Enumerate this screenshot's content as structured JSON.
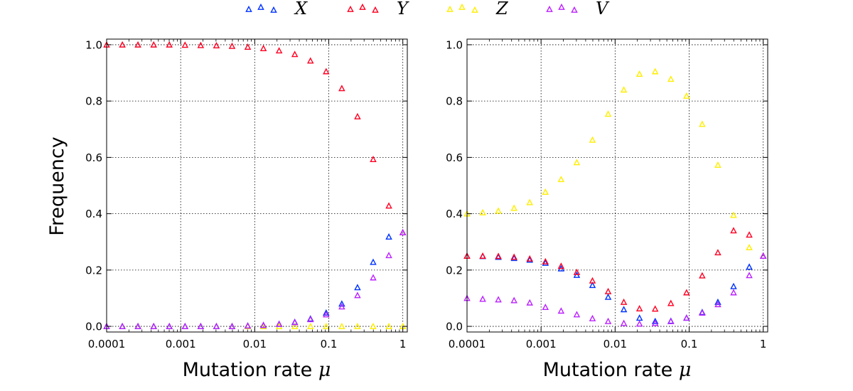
{
  "chart_data": [
    {
      "type": "scatter",
      "panel": "left",
      "xscale": "log",
      "xlim": [
        0.0001,
        1.15
      ],
      "ylim": [
        -0.02,
        1.02
      ],
      "grid": true,
      "xlabel_text": "Mutation rate ",
      "xlabel_symbol": "μ",
      "ylabel": "Frequency",
      "xticks": [
        "0.0001",
        "0.001",
        "0.01",
        "0.1",
        "1"
      ],
      "yticks": [
        "0.0",
        "0.2",
        "0.4",
        "0.6",
        "0.8",
        "1.0"
      ],
      "x": [
        0.0001,
        0.000163,
        0.000265,
        0.000432,
        0.000703,
        0.001145,
        0.001865,
        0.003037,
        0.004945,
        0.008052,
        0.01311,
        0.02135,
        0.03476,
        0.0566,
        0.09217,
        0.1501,
        0.2444,
        0.398,
        0.6481,
        1.0
      ],
      "series": [
        {
          "name": "X",
          "color": "#0033ff",
          "values": [
            0.0,
            0.0,
            0.0,
            0.0,
            0.0,
            0.0,
            0.0,
            0.0,
            0.0,
            0.002,
            0.004,
            0.008,
            0.015,
            0.027,
            0.048,
            0.08,
            0.138,
            0.228,
            0.318,
            0.333
          ]
        },
        {
          "name": "Y",
          "color": "#ff0022",
          "values": [
            1.0,
            1.0,
            1.0,
            1.0,
            1.0,
            0.999,
            0.998,
            0.997,
            0.995,
            0.992,
            0.987,
            0.979,
            0.966,
            0.943,
            0.905,
            0.845,
            0.745,
            0.593,
            0.428,
            0.333
          ]
        },
        {
          "name": "Z",
          "color": "#ffee00",
          "values": [
            0.0,
            0.0,
            0.0,
            0.0,
            0.0,
            0.0,
            0.0,
            0.0,
            0.0,
            0.0,
            0.0,
            0.0,
            0.0,
            0.0,
            0.0,
            0.0,
            0.0,
            0.0,
            0.0,
            0.0
          ]
        },
        {
          "name": "V",
          "color": "#bb22ff",
          "values": [
            0.0,
            0.0,
            0.0,
            0.0,
            0.0,
            0.0,
            0.0,
            0.0,
            0.0,
            0.002,
            0.004,
            0.008,
            0.014,
            0.025,
            0.042,
            0.07,
            0.11,
            0.173,
            0.252,
            0.333
          ]
        }
      ]
    },
    {
      "type": "scatter",
      "panel": "right",
      "xscale": "log",
      "xlim": [
        0.0001,
        1.15
      ],
      "ylim": [
        -0.02,
        1.02
      ],
      "grid": true,
      "xlabel_text": "Mutation rate ",
      "xlabel_symbol": "μ",
      "xticks": [
        "0.0001",
        "0.001",
        "0.01",
        "0.1",
        "1"
      ],
      "yticks": [
        "0.0",
        "0.2",
        "0.4",
        "0.6",
        "0.8",
        "1.0"
      ],
      "x": [
        0.0001,
        0.000163,
        0.000265,
        0.000432,
        0.000703,
        0.001145,
        0.001865,
        0.003037,
        0.004945,
        0.008052,
        0.01311,
        0.02135,
        0.03476,
        0.0566,
        0.09217,
        0.1501,
        0.2444,
        0.398,
        0.6481,
        1.0
      ],
      "series": [
        {
          "name": "X",
          "color": "#0033ff",
          "values": [
            0.25,
            0.249,
            0.246,
            0.242,
            0.236,
            0.225,
            0.205,
            0.182,
            0.146,
            0.104,
            0.06,
            0.03,
            0.018,
            0.019,
            0.03,
            0.05,
            0.086,
            0.142,
            0.211,
            0.25
          ]
        },
        {
          "name": "Y",
          "color": "#ff0022",
          "values": [
            0.25,
            0.25,
            0.249,
            0.246,
            0.24,
            0.23,
            0.214,
            0.192,
            0.162,
            0.124,
            0.086,
            0.063,
            0.062,
            0.082,
            0.12,
            0.18,
            0.262,
            0.34,
            0.325,
            0.25
          ]
        },
        {
          "name": "Z",
          "color": "#ffee00",
          "values": [
            0.4,
            0.404,
            0.41,
            0.42,
            0.44,
            0.477,
            0.522,
            0.582,
            0.662,
            0.754,
            0.84,
            0.896,
            0.905,
            0.878,
            0.818,
            0.718,
            0.573,
            0.395,
            0.28,
            0.25
          ]
        },
        {
          "name": "V",
          "color": "#bb22ff",
          "values": [
            0.1,
            0.097,
            0.095,
            0.092,
            0.084,
            0.068,
            0.055,
            0.042,
            0.028,
            0.018,
            0.011,
            0.009,
            0.011,
            0.018,
            0.03,
            0.048,
            0.078,
            0.12,
            0.181,
            0.25
          ]
        }
      ]
    }
  ],
  "legend": [
    {
      "name": "X",
      "color": "#0033ff"
    },
    {
      "name": "Y",
      "color": "#ff0022"
    },
    {
      "name": "Z",
      "color": "#ffee00"
    },
    {
      "name": "V",
      "color": "#bb22ff"
    }
  ]
}
